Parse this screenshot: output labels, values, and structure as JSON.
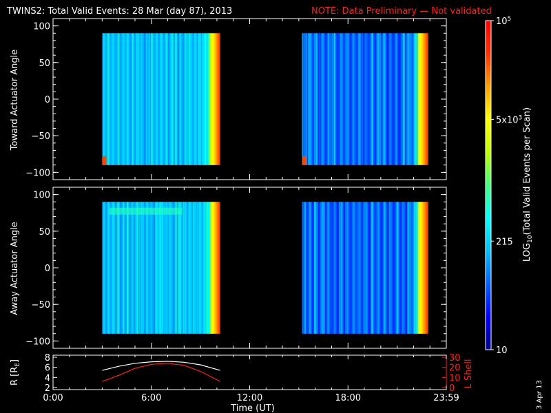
{
  "title": {
    "main": "TWINS2: Total Valid Events: 28 Mar (day  87), 2013",
    "note": "NOTE: Data Preliminary — Not validated",
    "note_color": "#ff2020"
  },
  "stamp": "3 Apr 13",
  "chart_data": [
    {
      "type": "heatmap",
      "panel": "toward",
      "ylabel": "Toward Actuator Angle",
      "ylim": [
        -110,
        110
      ],
      "yticks": [
        "100",
        "50",
        "0",
        "−50",
        "−100"
      ],
      "ytick_values": [
        100,
        50,
        0,
        -50,
        -100
      ],
      "data_blocks_hours": [
        [
          3.0,
          10.2
        ],
        [
          15.2,
          22.9
        ]
      ],
      "angle_range": [
        -90,
        90
      ]
    },
    {
      "type": "heatmap",
      "panel": "away",
      "ylabel": "Away Actuator Angle",
      "ylim": [
        -110,
        110
      ],
      "yticks": [
        "100",
        "50",
        "0",
        "−50",
        "−100"
      ],
      "ytick_values": [
        100,
        50,
        0,
        -50,
        -100
      ],
      "data_blocks_hours": [
        [
          3.0,
          10.2
        ],
        [
          15.2,
          22.9
        ]
      ],
      "angle_range": [
        -90,
        90
      ]
    },
    {
      "type": "line",
      "panel": "orbit",
      "ylabel_left": "R [R",
      "ylabel_left_sub": "E",
      "ylabel_left_end": "]",
      "ylabel_right": "L Shell",
      "ylim_left": [
        2,
        8
      ],
      "ylim_right": [
        0,
        30
      ],
      "yticks_left": [
        "8",
        "6",
        "4",
        "2"
      ],
      "yticks_left_values": [
        8,
        6,
        4,
        2
      ],
      "yticks_right": [
        "30",
        "20",
        "10",
        "0"
      ],
      "yticks_right_values": [
        30,
        20,
        10,
        0
      ],
      "series": [
        {
          "color": "#ffffff",
          "axis": "left",
          "x": [
            3.0,
            4.0,
            5.0,
            6.0,
            7.0,
            8.0,
            9.0,
            10.2
          ],
          "y": [
            5.4,
            6.2,
            6.8,
            7.1,
            7.2,
            7.0,
            6.5,
            5.4
          ]
        },
        {
          "color": "#ff2020",
          "axis": "right",
          "x": [
            3.0,
            4.0,
            5.0,
            6.0,
            7.0,
            8.0,
            9.0,
            10.2
          ],
          "y": [
            6,
            12,
            19,
            23,
            24,
            22,
            16,
            6
          ]
        }
      ]
    }
  ],
  "xaxis": {
    "label": "Time (UT)",
    "range_hours": [
      0,
      24
    ],
    "ticks": [
      "0:00",
      "6:00",
      "12:00",
      "18:00",
      "23:59"
    ],
    "tick_values": [
      0,
      6,
      12,
      18,
      24
    ]
  },
  "colorbar": {
    "label_pre": "LOG",
    "label_sub": "10",
    "label_post": "(Total Valid Events per Scan)",
    "ticks": [
      {
        "base": "10",
        "exp": "5",
        "pos": 1.0
      },
      {
        "base": "5x10",
        "exp": "3",
        "pos": 0.7
      },
      {
        "base": "215",
        "exp": "",
        "pos": 0.33
      },
      {
        "base": "10",
        "exp": "",
        "pos": 0.0
      }
    ],
    "colors": [
      "#00008b",
      "#0000ff",
      "#0060ff",
      "#00c0ff",
      "#00ffff",
      "#40ff80",
      "#c0ff00",
      "#ffff00",
      "#ffa000",
      "#ff3000",
      "#ff0000"
    ]
  }
}
